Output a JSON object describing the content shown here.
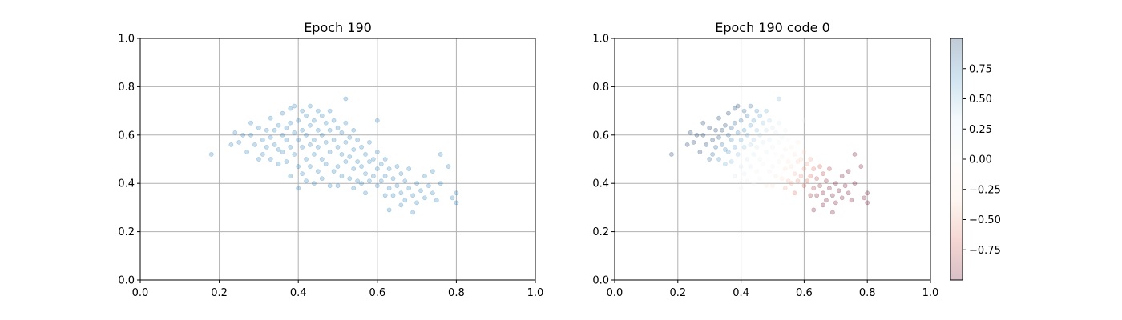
{
  "figure": {
    "background": "#ffffff"
  },
  "colors": {
    "point_color": "#1f77b4",
    "grid_color": "#b0b0b0",
    "colormap": [
      "#67001f",
      "#d6604d",
      "#fddbc7",
      "#f7f7f7",
      "#d1e5f0",
      "#4393c3",
      "#053061"
    ]
  },
  "chart_data": [
    {
      "type": "scatter",
      "title": "Epoch 190",
      "xlabel": "",
      "ylabel": "",
      "xlim": [
        0.0,
        1.0
      ],
      "ylim": [
        0.0,
        1.0
      ],
      "xticks": [
        "0.0",
        "0.2",
        "0.4",
        "0.6",
        "0.8",
        "1.0"
      ],
      "yticks": [
        "0.0",
        "0.2",
        "0.4",
        "0.6",
        "0.8",
        "1.0"
      ],
      "grid": true,
      "alpha": 0.25,
      "marker": "circle",
      "points": [
        [
          0.18,
          0.52
        ],
        [
          0.23,
          0.56
        ],
        [
          0.24,
          0.61
        ],
        [
          0.25,
          0.57
        ],
        [
          0.26,
          0.6
        ],
        [
          0.27,
          0.53
        ],
        [
          0.28,
          0.6
        ],
        [
          0.28,
          0.65
        ],
        [
          0.29,
          0.56
        ],
        [
          0.3,
          0.63
        ],
        [
          0.3,
          0.5
        ],
        [
          0.31,
          0.58
        ],
        [
          0.31,
          0.52
        ],
        [
          0.32,
          0.62
        ],
        [
          0.32,
          0.55
        ],
        [
          0.33,
          0.67
        ],
        [
          0.33,
          0.59
        ],
        [
          0.33,
          0.5
        ],
        [
          0.34,
          0.62
        ],
        [
          0.34,
          0.56
        ],
        [
          0.35,
          0.64
        ],
        [
          0.35,
          0.54
        ],
        [
          0.35,
          0.48
        ],
        [
          0.36,
          0.69
        ],
        [
          0.36,
          0.6
        ],
        [
          0.36,
          0.53
        ],
        [
          0.37,
          0.63
        ],
        [
          0.37,
          0.58
        ],
        [
          0.37,
          0.49
        ],
        [
          0.38,
          0.71
        ],
        [
          0.38,
          0.65
        ],
        [
          0.38,
          0.55
        ],
        [
          0.38,
          0.43
        ],
        [
          0.39,
          0.61
        ],
        [
          0.39,
          0.52
        ],
        [
          0.39,
          0.72
        ],
        [
          0.4,
          0.66
        ],
        [
          0.4,
          0.58
        ],
        [
          0.4,
          0.47
        ],
        [
          0.4,
          0.38
        ],
        [
          0.41,
          0.7
        ],
        [
          0.41,
          0.62
        ],
        [
          0.41,
          0.55
        ],
        [
          0.41,
          0.44
        ],
        [
          0.42,
          0.68
        ],
        [
          0.42,
          0.6
        ],
        [
          0.42,
          0.5
        ],
        [
          0.42,
          0.41
        ],
        [
          0.43,
          0.72
        ],
        [
          0.43,
          0.64
        ],
        [
          0.43,
          0.56
        ],
        [
          0.43,
          0.47
        ],
        [
          0.44,
          0.66
        ],
        [
          0.44,
          0.58
        ],
        [
          0.44,
          0.52
        ],
        [
          0.44,
          0.4
        ],
        [
          0.45,
          0.7
        ],
        [
          0.45,
          0.62
        ],
        [
          0.45,
          0.55
        ],
        [
          0.45,
          0.45
        ],
        [
          0.46,
          0.68
        ],
        [
          0.46,
          0.6
        ],
        [
          0.46,
          0.5
        ],
        [
          0.46,
          0.42
        ],
        [
          0.47,
          0.65
        ],
        [
          0.47,
          0.57
        ],
        [
          0.47,
          0.48
        ],
        [
          0.48,
          0.7
        ],
        [
          0.48,
          0.62
        ],
        [
          0.48,
          0.53
        ],
        [
          0.48,
          0.39
        ],
        [
          0.49,
          0.66
        ],
        [
          0.49,
          0.58
        ],
        [
          0.49,
          0.45
        ],
        [
          0.5,
          0.63
        ],
        [
          0.5,
          0.55
        ],
        [
          0.5,
          0.47
        ],
        [
          0.5,
          0.39
        ],
        [
          0.51,
          0.61
        ],
        [
          0.51,
          0.52
        ],
        [
          0.51,
          0.43
        ],
        [
          0.52,
          0.65
        ],
        [
          0.52,
          0.57
        ],
        [
          0.52,
          0.49
        ],
        [
          0.52,
          0.75
        ],
        [
          0.53,
          0.59
        ],
        [
          0.53,
          0.51
        ],
        [
          0.53,
          0.42
        ],
        [
          0.54,
          0.62
        ],
        [
          0.54,
          0.54
        ],
        [
          0.54,
          0.46
        ],
        [
          0.54,
          0.38
        ],
        [
          0.55,
          0.58
        ],
        [
          0.55,
          0.49
        ],
        [
          0.55,
          0.41
        ],
        [
          0.56,
          0.55
        ],
        [
          0.56,
          0.47
        ],
        [
          0.56,
          0.4
        ],
        [
          0.57,
          0.52
        ],
        [
          0.57,
          0.44
        ],
        [
          0.57,
          0.36
        ],
        [
          0.58,
          0.49
        ],
        [
          0.58,
          0.57
        ],
        [
          0.58,
          0.41
        ],
        [
          0.59,
          0.5
        ],
        [
          0.59,
          0.43
        ],
        [
          0.6,
          0.53
        ],
        [
          0.6,
          0.46
        ],
        [
          0.6,
          0.39
        ],
        [
          0.6,
          0.66
        ],
        [
          0.61,
          0.48
        ],
        [
          0.61,
          0.41
        ],
        [
          0.62,
          0.5
        ],
        [
          0.62,
          0.43
        ],
        [
          0.62,
          0.35
        ],
        [
          0.63,
          0.46
        ],
        [
          0.63,
          0.38
        ],
        [
          0.63,
          0.29
        ],
        [
          0.64,
          0.42
        ],
        [
          0.64,
          0.35
        ],
        [
          0.65,
          0.47
        ],
        [
          0.65,
          0.39
        ],
        [
          0.66,
          0.44
        ],
        [
          0.66,
          0.36
        ],
        [
          0.66,
          0.31
        ],
        [
          0.67,
          0.41
        ],
        [
          0.67,
          0.33
        ],
        [
          0.68,
          0.38
        ],
        [
          0.68,
          0.46
        ],
        [
          0.69,
          0.35
        ],
        [
          0.69,
          0.28
        ],
        [
          0.7,
          0.4
        ],
        [
          0.7,
          0.32
        ],
        [
          0.71,
          0.37
        ],
        [
          0.72,
          0.43
        ],
        [
          0.72,
          0.34
        ],
        [
          0.73,
          0.39
        ],
        [
          0.74,
          0.36
        ],
        [
          0.74,
          0.45
        ],
        [
          0.75,
          0.33
        ],
        [
          0.76,
          0.4
        ],
        [
          0.76,
          0.52
        ],
        [
          0.78,
          0.47
        ],
        [
          0.79,
          0.34
        ],
        [
          0.8,
          0.36
        ],
        [
          0.8,
          0.32
        ]
      ]
    },
    {
      "type": "scatter",
      "title": "Epoch 190 code 0",
      "xlabel": "",
      "ylabel": "",
      "xlim": [
        0.0,
        1.0
      ],
      "ylim": [
        0.0,
        1.0
      ],
      "xticks": [
        "0.0",
        "0.2",
        "0.4",
        "0.6",
        "0.8",
        "1.0"
      ],
      "yticks": [
        "0.0",
        "0.2",
        "0.4",
        "0.6",
        "0.8",
        "1.0"
      ],
      "grid": true,
      "alpha": 0.25,
      "marker": "circle",
      "color_by": "code",
      "colorbar": {
        "range": [
          -1.0,
          1.0
        ],
        "ticks": [
          0.75,
          0.5,
          0.25,
          0.0,
          -0.25,
          -0.5,
          -0.75
        ],
        "tick_labels": [
          "0.75",
          "0.50",
          "0.25",
          "0.00",
          "−0.25",
          "−0.50",
          "−0.75"
        ]
      }
    }
  ]
}
